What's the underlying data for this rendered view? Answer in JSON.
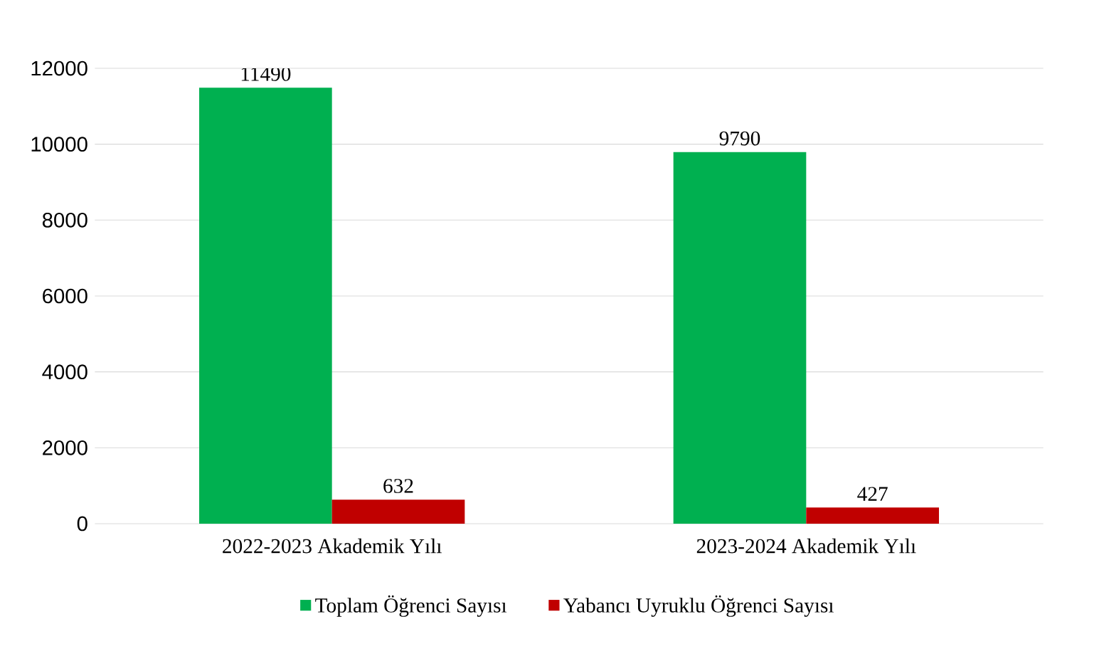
{
  "chart_data": {
    "type": "bar",
    "categories": [
      "2022-2023 Akademik Yılı",
      "2023-2024 Akademik Yılı"
    ],
    "series": [
      {
        "name": "Toplam Öğrenci Sayısı",
        "color": "#00b050",
        "values": [
          11490,
          9790
        ]
      },
      {
        "name": "Yabancı Uyruklu Öğrenci Sayısı",
        "color": "#c00000",
        "values": [
          632,
          427
        ]
      }
    ],
    "ylim": [
      0,
      12000
    ],
    "yticks": [
      0,
      2000,
      4000,
      6000,
      8000,
      10000,
      12000
    ],
    "grid": "y",
    "legend": "bottom",
    "data_labels": true
  }
}
